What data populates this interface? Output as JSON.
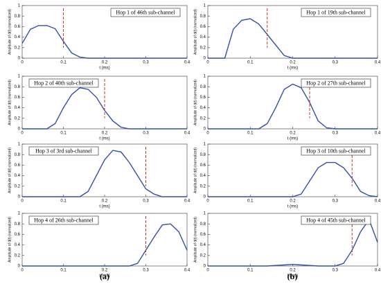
{
  "chart_data": [
    {
      "type": "line",
      "annotation": "Hop 1 of 46th sub-channel",
      "xlabel": "t (ms)",
      "ylabel": "Amplitude of d(t) (normalized)",
      "color": "#2f4fa8",
      "marker_color": "#c0392b",
      "marker_x": 0.1,
      "x": [
        0,
        0.02,
        0.04,
        0.06,
        0.08,
        0.1,
        0.12,
        0.14,
        0.16,
        0.18,
        0.2,
        0.22,
        0.24,
        0.26,
        0.28,
        0.3,
        0.32,
        0.34,
        0.36,
        0.38,
        0.4
      ],
      "values": [
        0.28,
        0.55,
        0.62,
        0.62,
        0.56,
        0.32,
        0.1,
        0.02,
        0,
        0,
        0,
        0,
        0,
        0,
        0,
        0,
        0,
        0,
        0,
        0,
        0
      ],
      "xlim": [
        0,
        0.4
      ],
      "xticks": [
        0,
        0.1,
        0.2,
        0.3,
        0.4
      ],
      "ylim": [
        0,
        1
      ],
      "yticks": [
        0,
        0.2,
        0.4,
        0.6,
        0.8,
        1
      ]
    },
    {
      "type": "line",
      "annotation": "Hop 2 of 40th sub-channel",
      "xlabel": "t (ms)",
      "ylabel": "Amplitude of d(t) (normalized)",
      "color": "#2f4fa8",
      "marker_color": "#c0392b",
      "marker_x": 0.2,
      "x": [
        0,
        0.02,
        0.04,
        0.06,
        0.08,
        0.1,
        0.12,
        0.14,
        0.16,
        0.18,
        0.2,
        0.22,
        0.24,
        0.26,
        0.28,
        0.3,
        0.32,
        0.34,
        0.36,
        0.38,
        0.4
      ],
      "values": [
        0,
        0,
        0,
        0,
        0.1,
        0.4,
        0.65,
        0.78,
        0.75,
        0.6,
        0.35,
        0.15,
        0.03,
        0,
        0,
        0,
        0,
        0,
        0,
        0,
        0
      ],
      "xlim": [
        0,
        0.4
      ],
      "xticks": [
        0,
        0.1,
        0.2,
        0.3,
        0.4
      ],
      "ylim": [
        0,
        1
      ],
      "yticks": [
        0,
        0.2,
        0.4,
        0.6,
        0.8,
        1
      ]
    },
    {
      "type": "line",
      "annotation": "Hop 3 of 3rd sub-channel",
      "xlabel": "t (ms)",
      "ylabel": "Amplitude of d(t) (normalized)",
      "color": "#2f4fa8",
      "marker_color": "#c0392b",
      "marker_x": 0.3,
      "x": [
        0,
        0.02,
        0.04,
        0.06,
        0.08,
        0.1,
        0.12,
        0.14,
        0.16,
        0.18,
        0.2,
        0.22,
        0.24,
        0.26,
        0.28,
        0.3,
        0.32,
        0.34,
        0.36,
        0.38,
        0.4
      ],
      "values": [
        0,
        0,
        0,
        0,
        0,
        0,
        0,
        0,
        0.1,
        0.4,
        0.7,
        0.88,
        0.85,
        0.65,
        0.4,
        0.15,
        0.05,
        0,
        0,
        0,
        0
      ],
      "xlim": [
        0,
        0.4
      ],
      "xticks": [
        0,
        0.1,
        0.2,
        0.3,
        0.4
      ],
      "ylim": [
        0,
        1
      ],
      "yticks": [
        0,
        0.2,
        0.4,
        0.6,
        0.8,
        1
      ]
    },
    {
      "type": "line",
      "annotation": "Hop 4 of 26th sub-channel",
      "xlabel": "t (ms)",
      "ylabel": "Amplitude of d(t) (normalized)",
      "color": "#2f4fa8",
      "marker_color": "#c0392b",
      "marker_x": 0.3,
      "x": [
        0,
        0.02,
        0.04,
        0.06,
        0.08,
        0.1,
        0.12,
        0.14,
        0.16,
        0.18,
        0.2,
        0.22,
        0.24,
        0.26,
        0.28,
        0.3,
        0.32,
        0.34,
        0.36,
        0.38,
        0.4
      ],
      "values": [
        0,
        0,
        0,
        0,
        0,
        0,
        0,
        0,
        0,
        0,
        0,
        0,
        0,
        0,
        0.05,
        0.3,
        0.55,
        0.78,
        0.8,
        0.65,
        0.3
      ],
      "xlim": [
        0,
        0.4
      ],
      "xticks": [
        0,
        0.1,
        0.2,
        0.3,
        0.4
      ],
      "ylim": [
        0,
        1
      ],
      "yticks": [
        0,
        0.2,
        0.4,
        0.6,
        0.8,
        1
      ]
    },
    {
      "type": "line",
      "annotation": "Hop 1 of 19th sub-channel",
      "xlabel": "t (ms)",
      "ylabel": "Amplitude of d(t) (normalized)",
      "color": "#2f4fa8",
      "marker_color": "#c0392b",
      "marker_x": 0.14,
      "x": [
        0,
        0.02,
        0.04,
        0.06,
        0.08,
        0.1,
        0.12,
        0.14,
        0.16,
        0.18,
        0.2,
        0.22,
        0.24,
        0.26,
        0.28,
        0.3,
        0.32,
        0.34,
        0.36,
        0.38,
        0.4
      ],
      "values": [
        0,
        0,
        0,
        0.55,
        0.72,
        0.75,
        0.65,
        0.45,
        0.25,
        0.05,
        0,
        0,
        0,
        0,
        0,
        0,
        0,
        0,
        0,
        0,
        0
      ],
      "xlim": [
        0,
        0.4
      ],
      "xticks": [
        0,
        0.1,
        0.2,
        0.3,
        0.4
      ],
      "ylim": [
        0,
        1
      ],
      "yticks": [
        0,
        0.2,
        0.4,
        0.6,
        0.8,
        1
      ]
    },
    {
      "type": "line",
      "annotation": "Hop 2 of 27th sub-channel",
      "xlabel": "t (ms)",
      "ylabel": "Amplitude of d(t) (normalized)",
      "color": "#2f4fa8",
      "marker_color": "#c0392b",
      "marker_x": 0.24,
      "x": [
        0,
        0.02,
        0.04,
        0.06,
        0.08,
        0.1,
        0.12,
        0.14,
        0.16,
        0.18,
        0.2,
        0.22,
        0.24,
        0.26,
        0.28,
        0.3,
        0.32,
        0.34,
        0.36,
        0.38,
        0.4
      ],
      "values": [
        0,
        0,
        0,
        0,
        0,
        0,
        0,
        0.1,
        0.4,
        0.75,
        0.85,
        0.78,
        0.5,
        0.15,
        0.02,
        0,
        0,
        0,
        0,
        0,
        0
      ],
      "xlim": [
        0,
        0.4
      ],
      "xticks": [
        0,
        0.1,
        0.2,
        0.3,
        0.4
      ],
      "ylim": [
        0,
        1
      ],
      "yticks": [
        0,
        0.2,
        0.4,
        0.6,
        0.8,
        1
      ]
    },
    {
      "type": "line",
      "annotation": "Hop 3 of 10th sub-channel",
      "xlabel": "t (ms)",
      "ylabel": "Amplitude of d(t) (normalized)",
      "color": "#2f4fa8",
      "marker_color": "#c0392b",
      "marker_x": 0.34,
      "x": [
        0,
        0.02,
        0.04,
        0.06,
        0.08,
        0.1,
        0.12,
        0.14,
        0.16,
        0.18,
        0.2,
        0.22,
        0.24,
        0.26,
        0.28,
        0.3,
        0.32,
        0.34,
        0.36,
        0.38,
        0.4
      ],
      "values": [
        0,
        0,
        0,
        0,
        0,
        0,
        0,
        0,
        0,
        0,
        0,
        0.05,
        0.3,
        0.55,
        0.65,
        0.65,
        0.55,
        0.35,
        0.1,
        0.02,
        0
      ],
      "xlim": [
        0,
        0.4
      ],
      "xticks": [
        0,
        0.1,
        0.2,
        0.3,
        0.4
      ],
      "ylim": [
        0,
        1
      ],
      "yticks": [
        0,
        0.2,
        0.4,
        0.6,
        0.8,
        1
      ]
    },
    {
      "type": "line",
      "annotation": "Hop 4 of 45th sub-channel",
      "xlabel": "t (ms)",
      "ylabel": "Amplitude of d(t) (normalized)",
      "color": "#2f4fa8",
      "marker_color": "#c0392b",
      "marker_x": 0.34,
      "x": [
        0,
        0.02,
        0.04,
        0.06,
        0.08,
        0.1,
        0.12,
        0.14,
        0.16,
        0.18,
        0.2,
        0.22,
        0.24,
        0.26,
        0.28,
        0.3,
        0.32,
        0.34,
        0.36,
        0.38,
        0.4
      ],
      "values": [
        0,
        0,
        0,
        0,
        0,
        0,
        0,
        0,
        0.01,
        0.02,
        0.03,
        0.02,
        0.01,
        0,
        0,
        0,
        0.05,
        0.3,
        0.65,
        0.88,
        0.45
      ],
      "xlim": [
        0,
        0.4
      ],
      "xticks": [
        0,
        0.1,
        0.2,
        0.3,
        0.4
      ],
      "ylim": [
        0,
        1
      ],
      "yticks": [
        0,
        0.2,
        0.4,
        0.6,
        0.8,
        1
      ]
    }
  ],
  "panel_labels": [
    "(a)",
    "(b)"
  ]
}
